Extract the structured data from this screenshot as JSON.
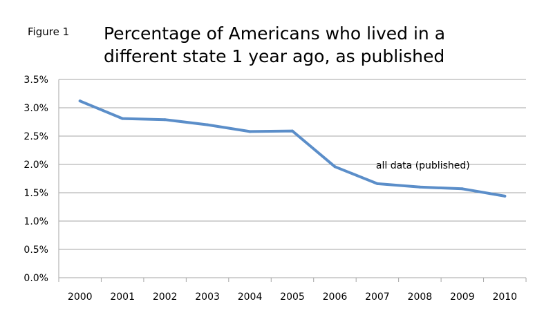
{
  "figure_label": "Figure 1",
  "chart_data": {
    "type": "line",
    "title_lines": [
      "Percentage of Americans who lived in a",
      "different state 1 year ago, as published"
    ],
    "categories": [
      "2000",
      "2001",
      "2002",
      "2003",
      "2004",
      "2005",
      "2006",
      "2007",
      "2008",
      "2009",
      "2010"
    ],
    "series": [
      {
        "name": "all data (published)",
        "values": [
          3.12,
          2.81,
          2.79,
          2.7,
          2.58,
          2.59,
          1.96,
          1.66,
          1.6,
          1.57,
          1.44
        ],
        "color": "#5b8ec9"
      }
    ],
    "y_ticks": [
      "0.0%",
      "0.5%",
      "1.0%",
      "1.5%",
      "2.0%",
      "2.5%",
      "3.0%",
      "3.5%"
    ],
    "ylim": [
      0,
      3.5
    ],
    "y_unit": "%",
    "grid": true,
    "gridline_color": "#a6a6a6",
    "annotation": {
      "text": "all data (published)",
      "near_category": "2007"
    }
  }
}
